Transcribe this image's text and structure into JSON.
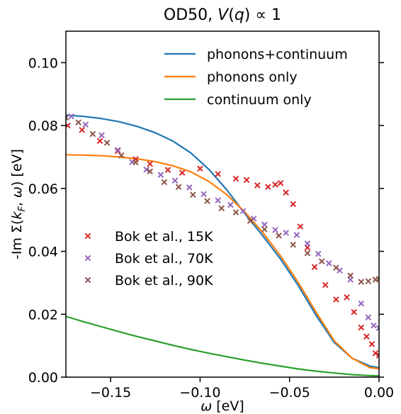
{
  "chart_data": {
    "type": "line",
    "title": "OD50, V(q) ∝ 1",
    "xlabel": "ω [eV]",
    "ylabel": "-Im Σ(k_F, ω) [eV]",
    "xlim": [
      -0.175,
      0.0
    ],
    "ylim": [
      0.0,
      0.11
    ],
    "xticks": [
      -0.15,
      -0.1,
      -0.05,
      0.0
    ],
    "xtick_labels": [
      "−0.15",
      "−0.10",
      "−0.05",
      "0.00"
    ],
    "yticks": [
      0.0,
      0.02,
      0.04,
      0.06,
      0.08,
      0.1
    ],
    "ytick_labels": [
      "0.00",
      "0.02",
      "0.04",
      "0.06",
      "0.08",
      "0.10"
    ],
    "grid": false,
    "legend_lines_placement": "top-right",
    "legend_markers_placement": "lower-left",
    "series": [
      {
        "name": "phonons+continuum",
        "kind": "line",
        "color": "#1f77b4",
        "x": [
          -0.175,
          -0.165,
          -0.155,
          -0.145,
          -0.135,
          -0.125,
          -0.115,
          -0.105,
          -0.095,
          -0.085,
          -0.075,
          -0.065,
          -0.055,
          -0.045,
          -0.035,
          -0.025,
          -0.015,
          -0.005,
          0.0
        ],
        "y": [
          0.0833,
          0.0829,
          0.0822,
          0.0812,
          0.0797,
          0.0777,
          0.075,
          0.0712,
          0.066,
          0.0595,
          0.052,
          0.045,
          0.0375,
          0.029,
          0.0195,
          0.011,
          0.006,
          0.0035,
          0.003
        ]
      },
      {
        "name": "phonons only",
        "kind": "line",
        "color": "#ff7f0e",
        "x": [
          -0.175,
          -0.165,
          -0.155,
          -0.145,
          -0.135,
          -0.125,
          -0.115,
          -0.105,
          -0.095,
          -0.085,
          -0.075,
          -0.065,
          -0.055,
          -0.045,
          -0.035,
          -0.025,
          -0.015,
          -0.005,
          0.0
        ],
        "y": [
          0.0707,
          0.0706,
          0.0704,
          0.07,
          0.0694,
          0.0685,
          0.0672,
          0.0652,
          0.0622,
          0.058,
          0.0525,
          0.046,
          0.0385,
          0.03,
          0.0205,
          0.0115,
          0.006,
          0.003,
          0.0027
        ]
      },
      {
        "name": "continuum only",
        "kind": "line",
        "color": "#2ca02c",
        "x": [
          -0.175,
          -0.165,
          -0.155,
          -0.145,
          -0.135,
          -0.125,
          -0.115,
          -0.105,
          -0.095,
          -0.085,
          -0.075,
          -0.065,
          -0.055,
          -0.045,
          -0.035,
          -0.025,
          -0.015,
          -0.005,
          0.0
        ],
        "y": [
          0.0193,
          0.0176,
          0.016,
          0.0144,
          0.0129,
          0.0115,
          0.0101,
          0.0088,
          0.0076,
          0.0065,
          0.0054,
          0.0044,
          0.0035,
          0.0026,
          0.0019,
          0.0013,
          0.0008,
          0.0005,
          0.0004
        ]
      },
      {
        "name": "Bok et al., 15K",
        "kind": "marker",
        "color": "#d62728",
        "x": [
          -0.174,
          -0.166,
          -0.156,
          -0.146,
          -0.136,
          -0.128,
          -0.118,
          -0.11,
          -0.1,
          -0.09,
          -0.08,
          -0.074,
          -0.068,
          -0.062,
          -0.058,
          -0.055,
          -0.052,
          -0.048,
          -0.044,
          -0.04,
          -0.036,
          -0.03,
          -0.024,
          -0.018,
          -0.014,
          -0.01,
          -0.007,
          -0.004,
          -0.002,
          0.0
        ],
        "y": [
          0.08,
          0.0786,
          0.0751,
          0.0719,
          0.0693,
          0.0678,
          0.0659,
          0.065,
          0.0663,
          0.0646,
          0.0631,
          0.0627,
          0.061,
          0.0605,
          0.0612,
          0.0617,
          0.0587,
          0.055,
          0.0479,
          0.0412,
          0.035,
          0.0293,
          0.0247,
          0.0254,
          0.0207,
          0.0158,
          0.0129,
          0.0105,
          0.0076,
          0.0069
        ]
      },
      {
        "name": "Bok et al., 70K",
        "kind": "marker",
        "color": "#9467bd",
        "x": [
          -0.172,
          -0.164,
          -0.155,
          -0.146,
          -0.138,
          -0.13,
          -0.122,
          -0.114,
          -0.106,
          -0.098,
          -0.09,
          -0.083,
          -0.076,
          -0.07,
          -0.064,
          -0.058,
          -0.052,
          -0.046,
          -0.04,
          -0.034,
          -0.028,
          -0.022,
          -0.016,
          -0.01,
          -0.006,
          -0.003,
          0.0
        ],
        "y": [
          0.0829,
          0.0803,
          0.0769,
          0.0722,
          0.0684,
          0.066,
          0.0643,
          0.0625,
          0.0603,
          0.0582,
          0.0562,
          0.0548,
          0.0528,
          0.0504,
          0.0485,
          0.0468,
          0.0459,
          0.0452,
          0.0425,
          0.0392,
          0.0362,
          0.0339,
          0.031,
          0.0234,
          0.019,
          0.0164,
          0.0156
        ]
      },
      {
        "name": "Bok et al., 90K",
        "kind": "marker",
        "color": "#8c564b",
        "x": [
          -0.175,
          -0.168,
          -0.16,
          -0.152,
          -0.144,
          -0.136,
          -0.128,
          -0.12,
          -0.112,
          -0.104,
          -0.096,
          -0.088,
          -0.08,
          -0.072,
          -0.064,
          -0.056,
          -0.048,
          -0.04,
          -0.032,
          -0.024,
          -0.016,
          -0.01,
          -0.006,
          -0.002,
          0.0
        ],
        "y": [
          0.0825,
          0.081,
          0.0773,
          0.0745,
          0.0705,
          0.0683,
          0.0654,
          0.062,
          0.0605,
          0.058,
          0.056,
          0.0537,
          0.0524,
          0.0497,
          0.047,
          0.045,
          0.0421,
          0.0394,
          0.0368,
          0.0348,
          0.0323,
          0.0303,
          0.0305,
          0.031,
          0.0312
        ]
      }
    ]
  }
}
